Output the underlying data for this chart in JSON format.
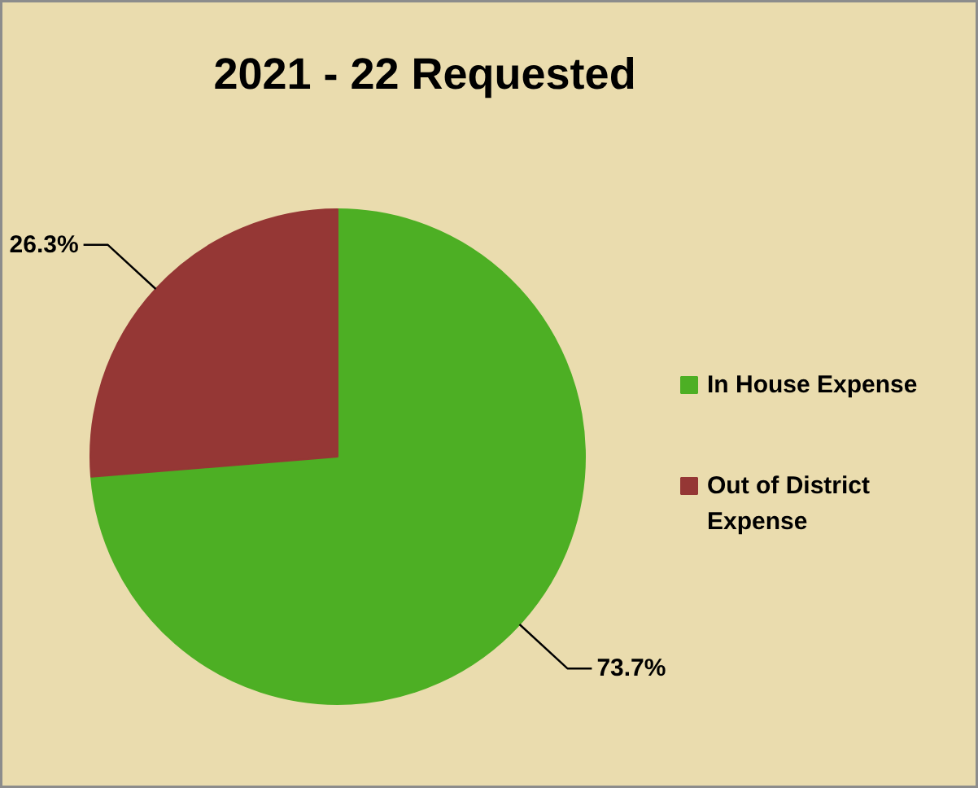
{
  "chart_data": {
    "type": "pie",
    "title": "2021 - 22 Requested",
    "categories": [
      "In House Expense",
      "Out of District Expense"
    ],
    "values": [
      73.7,
      26.3
    ],
    "colors": [
      "#4daf24",
      "#953735"
    ],
    "value_labels": [
      "73.7%",
      "26.3%"
    ],
    "legend": "right"
  }
}
